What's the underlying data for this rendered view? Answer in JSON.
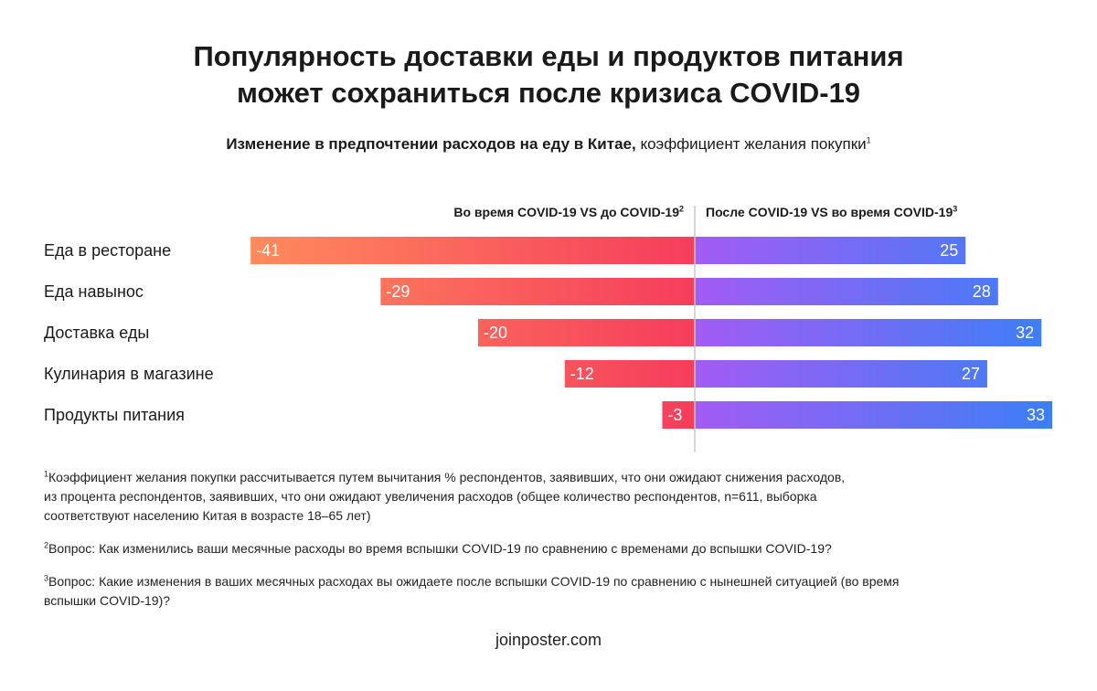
{
  "title": {
    "line1": "Популярность доставки еды и продуктов питания",
    "line2": "может сохраниться после кризиса COVID-19"
  },
  "subtitle": {
    "bold": "Изменение в предпочтении расходов на еду в Китае,",
    "normal": " коэффициент желания покупки",
    "sup": "1"
  },
  "chart_data": {
    "type": "bar",
    "orientation": "horizontal-diverging",
    "categories": [
      "Еда в ресторане",
      "Еда навынос",
      "Доставка еды",
      "Кулинария в магазине",
      "Продукты питания"
    ],
    "series": [
      {
        "name": "Во время COVID-19 VS до COVID-19",
        "name_sup": "2",
        "values": [
          -41,
          -29,
          -20,
          -12,
          -3
        ],
        "gradient": [
          "#ff8a5c",
          "#f53d5c"
        ]
      },
      {
        "name": "После COVID-19 VS во время COVID-19",
        "name_sup": "3",
        "values": [
          25,
          28,
          32,
          27,
          33
        ],
        "gradient": [
          "#a35cf5",
          "#3b7ff5"
        ]
      }
    ],
    "grid": false,
    "legend": "column headers above bars"
  },
  "notes": [
    {
      "sup": "1",
      "lines": [
        "Коэффициент желания покупки рассчитывается путем вычитания % респондентов, заявивших, что они ожидают снижения расходов,",
        "из процента респондентов, заявивших, что они ожидают увеличения расходов (общее количество респондентов, n=611, выборка",
        "соответствуют населению Китая в возрасте 18–65 лет)"
      ]
    },
    {
      "sup": "2",
      "lines": [
        "Вопрос: Как изменились ваши месячные расходы во время вспышки COVID-19 по сравнению с временами до вспышки COVID-19?"
      ]
    },
    {
      "sup": "3",
      "lines": [
        "Вопрос: Какие изменения в ваших месячных расходах вы ожидаете после вспышки COVID-19 по сравнению с нынешней ситуацией (во время",
        "вспышки COVID-19)?"
      ]
    }
  ],
  "footer": "joinposter.com"
}
